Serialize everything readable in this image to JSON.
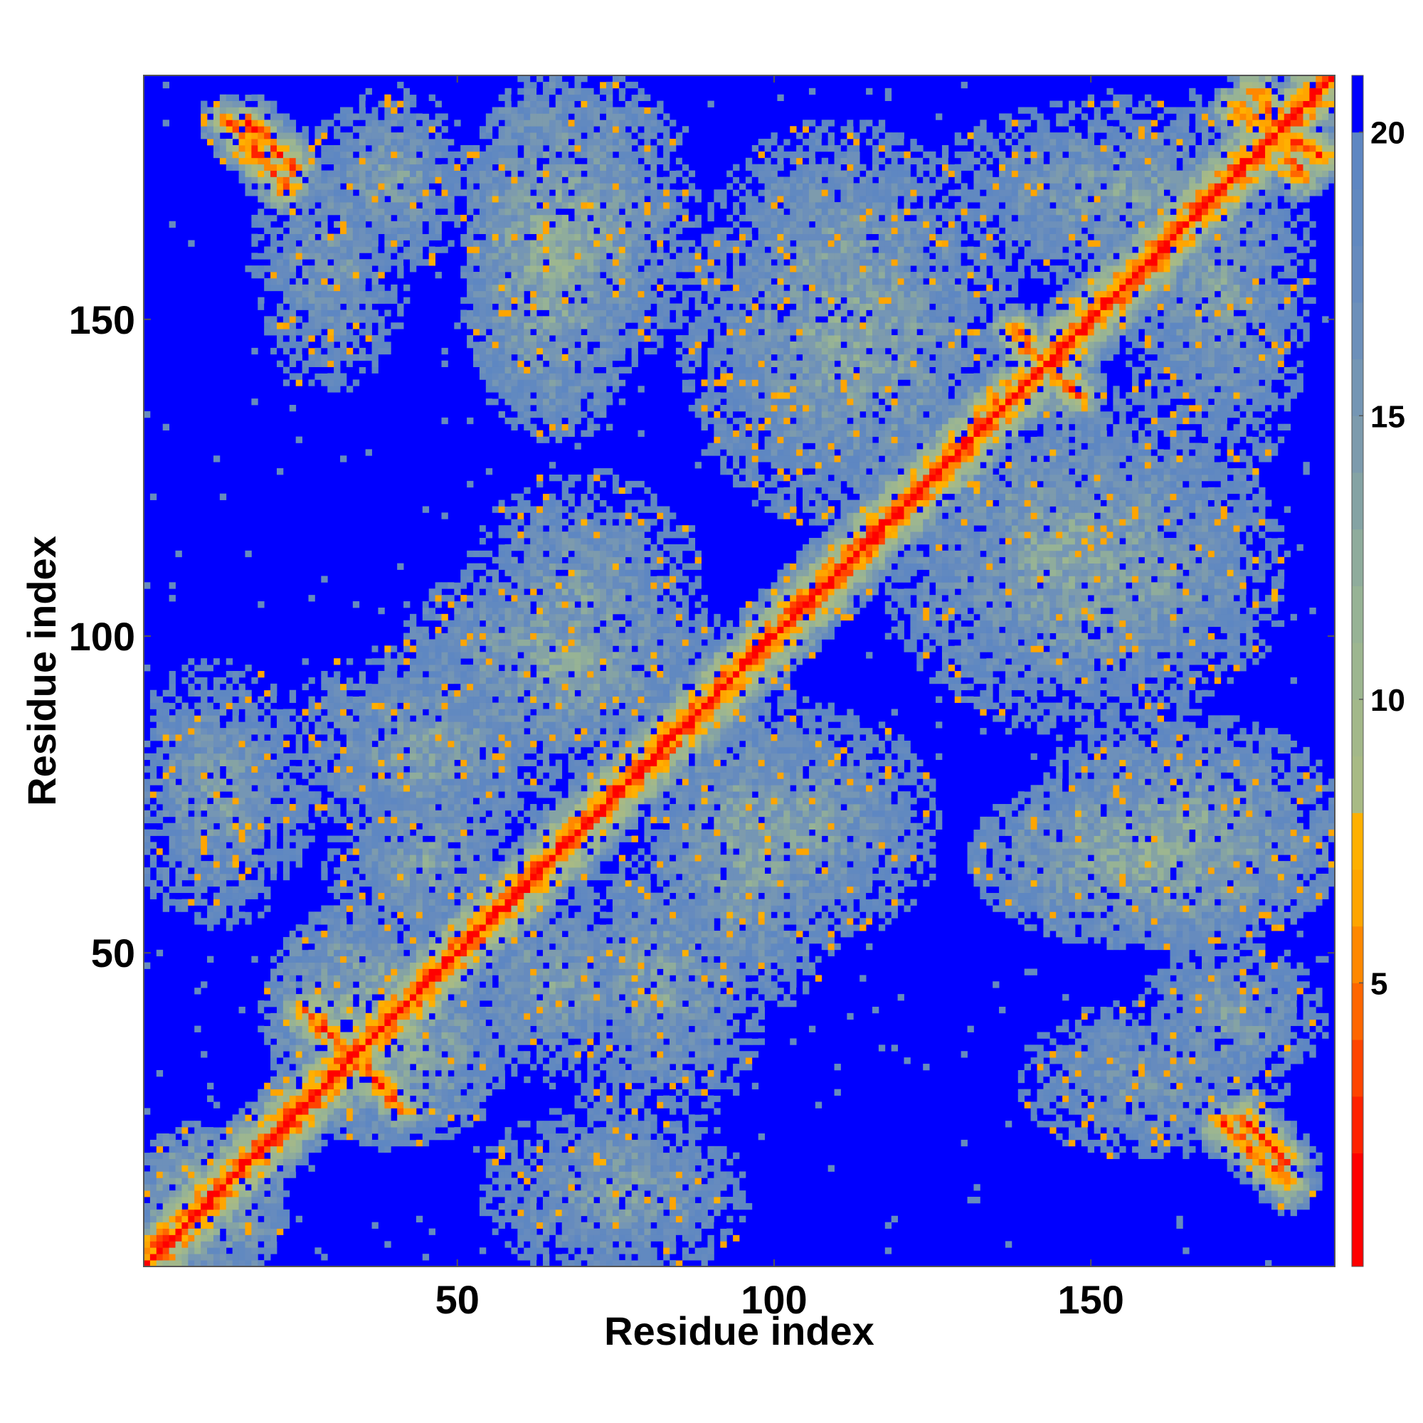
{
  "chart_data": {
    "type": "heatmap",
    "title": "",
    "xlabel": "Residue index",
    "ylabel": "Residue index",
    "n_residues": 188,
    "xlim": [
      1,
      188
    ],
    "ylim": [
      1,
      188
    ],
    "x_ticks": [
      50,
      100,
      150
    ],
    "y_ticks": [
      50,
      100,
      150
    ],
    "x_tick_labels": [
      "50",
      "100",
      "150"
    ],
    "y_tick_labels": [
      "50",
      "100",
      "150"
    ],
    "colorbar": {
      "range": [
        0,
        21
      ],
      "ticks": [
        5,
        10,
        15,
        20
      ],
      "tick_labels": [
        "5",
        "10",
        "15",
        "20"
      ],
      "levels": [
        {
          "max": 2,
          "color": "#ff0000"
        },
        {
          "max": 3,
          "color": "#ff2200"
        },
        {
          "max": 4,
          "color": "#ff4400"
        },
        {
          "max": 5,
          "color": "#ff6600"
        },
        {
          "max": 6,
          "color": "#ff8800"
        },
        {
          "max": 7,
          "color": "#ffa500"
        },
        {
          "max": 8,
          "color": "#ffb000"
        },
        {
          "max": 9,
          "color": "#a8ba85"
        },
        {
          "max": 10,
          "color": "#a3b88a"
        },
        {
          "max": 11,
          "color": "#9db690"
        },
        {
          "max": 12,
          "color": "#97b395"
        },
        {
          "max": 13,
          "color": "#8fac9c"
        },
        {
          "max": 14,
          "color": "#85a3a4"
        },
        {
          "max": 15,
          "color": "#7d9bad"
        },
        {
          "max": 16,
          "color": "#7596b4"
        },
        {
          "max": 17,
          "color": "#6d90ba"
        },
        {
          "max": 18,
          "color": "#668bbe"
        },
        {
          "max": 19,
          "color": "#6189c0"
        },
        {
          "max": 20,
          "color": "#5e87c2"
        },
        {
          "max": 21,
          "color": "#0000ff"
        }
      ]
    },
    "grid": false,
    "legend": "colorbar-right",
    "background_color": "#0000ff",
    "contact_features": [
      {
        "kind": "diagonal",
        "start": 1,
        "end": 188,
        "core": 2.5,
        "band_width": 9
      },
      {
        "kind": "cross-strand",
        "x": [
          28,
          41
        ],
        "y": [
          39,
          26
        ],
        "center_value": 4
      },
      {
        "kind": "cross-strand",
        "x": [
          17,
          24
        ],
        "y": [
          181,
          174
        ],
        "center_value": 4
      },
      {
        "kind": "cross-strand",
        "x": [
          171,
          181
        ],
        "y": [
          23,
          14
        ],
        "center_value": 4
      },
      {
        "kind": "cross-strand",
        "x": [
          173,
          186
        ],
        "y": [
          183,
          176
        ],
        "center_value": 4
      },
      {
        "kind": "cross-strand",
        "x": [
          138,
          148
        ],
        "y": [
          148,
          138
        ],
        "center_value": 4
      },
      {
        "kind": "blob",
        "cx": 65,
        "cy": 160,
        "rx": 13,
        "ry": 26,
        "value": 12
      },
      {
        "kind": "blob",
        "cx": 67,
        "cy": 96,
        "rx": 23,
        "ry": 16,
        "value": 13
      },
      {
        "kind": "blob",
        "cx": 110,
        "cy": 160,
        "rx": 20,
        "ry": 20,
        "value": 14
      },
      {
        "kind": "blob",
        "cx": 148,
        "cy": 112,
        "rx": 28,
        "ry": 24,
        "value": 13
      },
      {
        "kind": "blob",
        "cx": 45,
        "cy": 82,
        "rx": 22,
        "ry": 16,
        "value": 14
      },
      {
        "kind": "blob",
        "cx": 12,
        "cy": 75,
        "rx": 14,
        "ry": 20,
        "value": 14
      },
      {
        "kind": "blob",
        "cx": 105,
        "cy": 70,
        "rx": 20,
        "ry": 18,
        "value": 14
      },
      {
        "kind": "blob",
        "cx": 165,
        "cy": 70,
        "rx": 22,
        "ry": 16,
        "value": 13
      },
      {
        "kind": "blob",
        "cx": 170,
        "cy": 155,
        "rx": 14,
        "ry": 30,
        "value": 14
      },
      {
        "kind": "blob",
        "cx": 35,
        "cy": 40,
        "rx": 14,
        "ry": 16,
        "value": 12
      },
      {
        "kind": "blob",
        "cx": 65,
        "cy": 45,
        "rx": 16,
        "ry": 15,
        "value": 14
      },
      {
        "kind": "blob",
        "cx": 75,
        "cy": 15,
        "rx": 16,
        "ry": 15,
        "value": 15
      },
      {
        "kind": "blob",
        "cx": 160,
        "cy": 30,
        "rx": 24,
        "ry": 14,
        "value": 15
      },
      {
        "kind": "blob",
        "cx": 40,
        "cy": 172,
        "rx": 12,
        "ry": 14,
        "value": 14
      },
      {
        "kind": "blob",
        "cx": 12,
        "cy": 10,
        "rx": 10,
        "ry": 10,
        "value": 12
      }
    ]
  }
}
